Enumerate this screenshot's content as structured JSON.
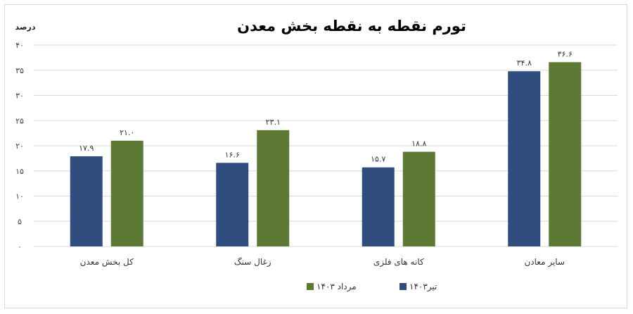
{
  "chart_data": {
    "type": "bar",
    "title": "تورم نقطه به نقطه بخش معدن",
    "ylabel": "درصد",
    "ylim": [
      0,
      40
    ],
    "yticks": [
      0,
      5,
      10,
      15,
      20,
      25,
      30,
      35,
      40
    ],
    "ytick_labels": [
      "۰",
      "۵",
      "۱۰",
      "۱۵",
      "۲۰",
      "۲۵",
      "۳۰",
      "۳۵",
      "۴۰"
    ],
    "categories": [
      "کل بخش معدن",
      "زغال سنگ",
      "کانه های فلزی",
      "سایر معادن"
    ],
    "series": [
      {
        "name": "تیر۱۴۰۳",
        "color": "#2f4d7e",
        "values": [
          17.9,
          16.6,
          15.7,
          34.8
        ],
        "labels": [
          "۱۷.۹",
          "۱۶.۶",
          "۱۵.۷",
          "۳۴.۸"
        ]
      },
      {
        "name": "مرداد ۱۴۰۳",
        "color": "#5c7a33",
        "values": [
          21.0,
          23.1,
          18.8,
          36.6
        ],
        "labels": [
          "۲۱.۰",
          "۲۳.۱",
          "۱۸.۸",
          "۳۶.۶"
        ]
      }
    ],
    "grid": true,
    "legend_position": "bottom"
  }
}
